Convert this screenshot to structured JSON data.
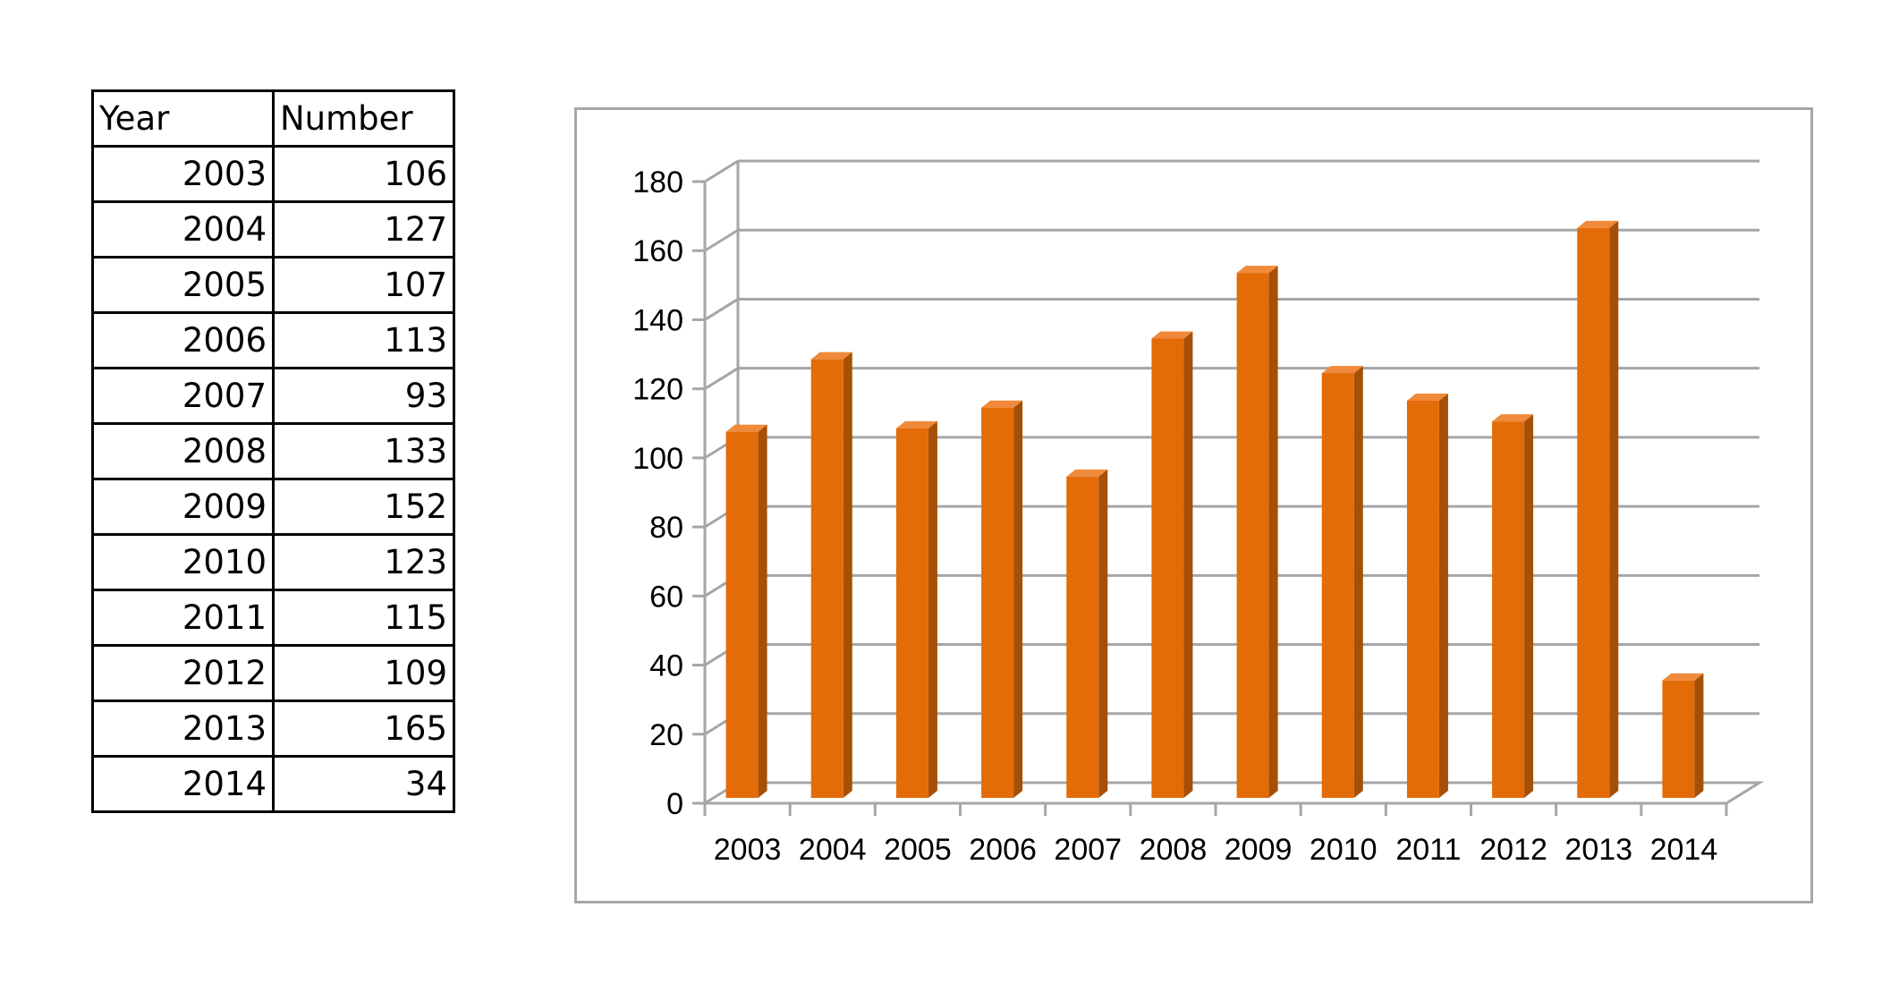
{
  "table": {
    "headers": [
      "Year",
      "Number"
    ],
    "rows": [
      [
        "2003",
        "106"
      ],
      [
        "2004",
        "127"
      ],
      [
        "2005",
        "107"
      ],
      [
        "2006",
        "113"
      ],
      [
        "2007",
        "93"
      ],
      [
        "2008",
        "133"
      ],
      [
        "2009",
        "152"
      ],
      [
        "2010",
        "123"
      ],
      [
        "2011",
        "115"
      ],
      [
        "2012",
        "109"
      ],
      [
        "2013",
        "165"
      ],
      [
        "2014",
        "34"
      ]
    ]
  },
  "chart_data": {
    "type": "bar",
    "style": "3d-column",
    "title": "",
    "xlabel": "",
    "ylabel": "",
    "categories": [
      "2003",
      "2004",
      "2005",
      "2006",
      "2007",
      "2008",
      "2009",
      "2010",
      "2011",
      "2012",
      "2013",
      "2014"
    ],
    "values": [
      106,
      127,
      107,
      113,
      93,
      133,
      152,
      123,
      115,
      109,
      165,
      34
    ],
    "ylim": [
      0,
      180
    ],
    "yticks": [
      0,
      20,
      40,
      60,
      80,
      100,
      120,
      140,
      160,
      180
    ],
    "grid": true,
    "legend": "none",
    "colors": {
      "bar_front": "#E36C09",
      "bar_side": "#A64F06",
      "bar_top": "#F08A3A",
      "gridline": "#A6A6A6",
      "frame": "#A6A6A6"
    }
  }
}
